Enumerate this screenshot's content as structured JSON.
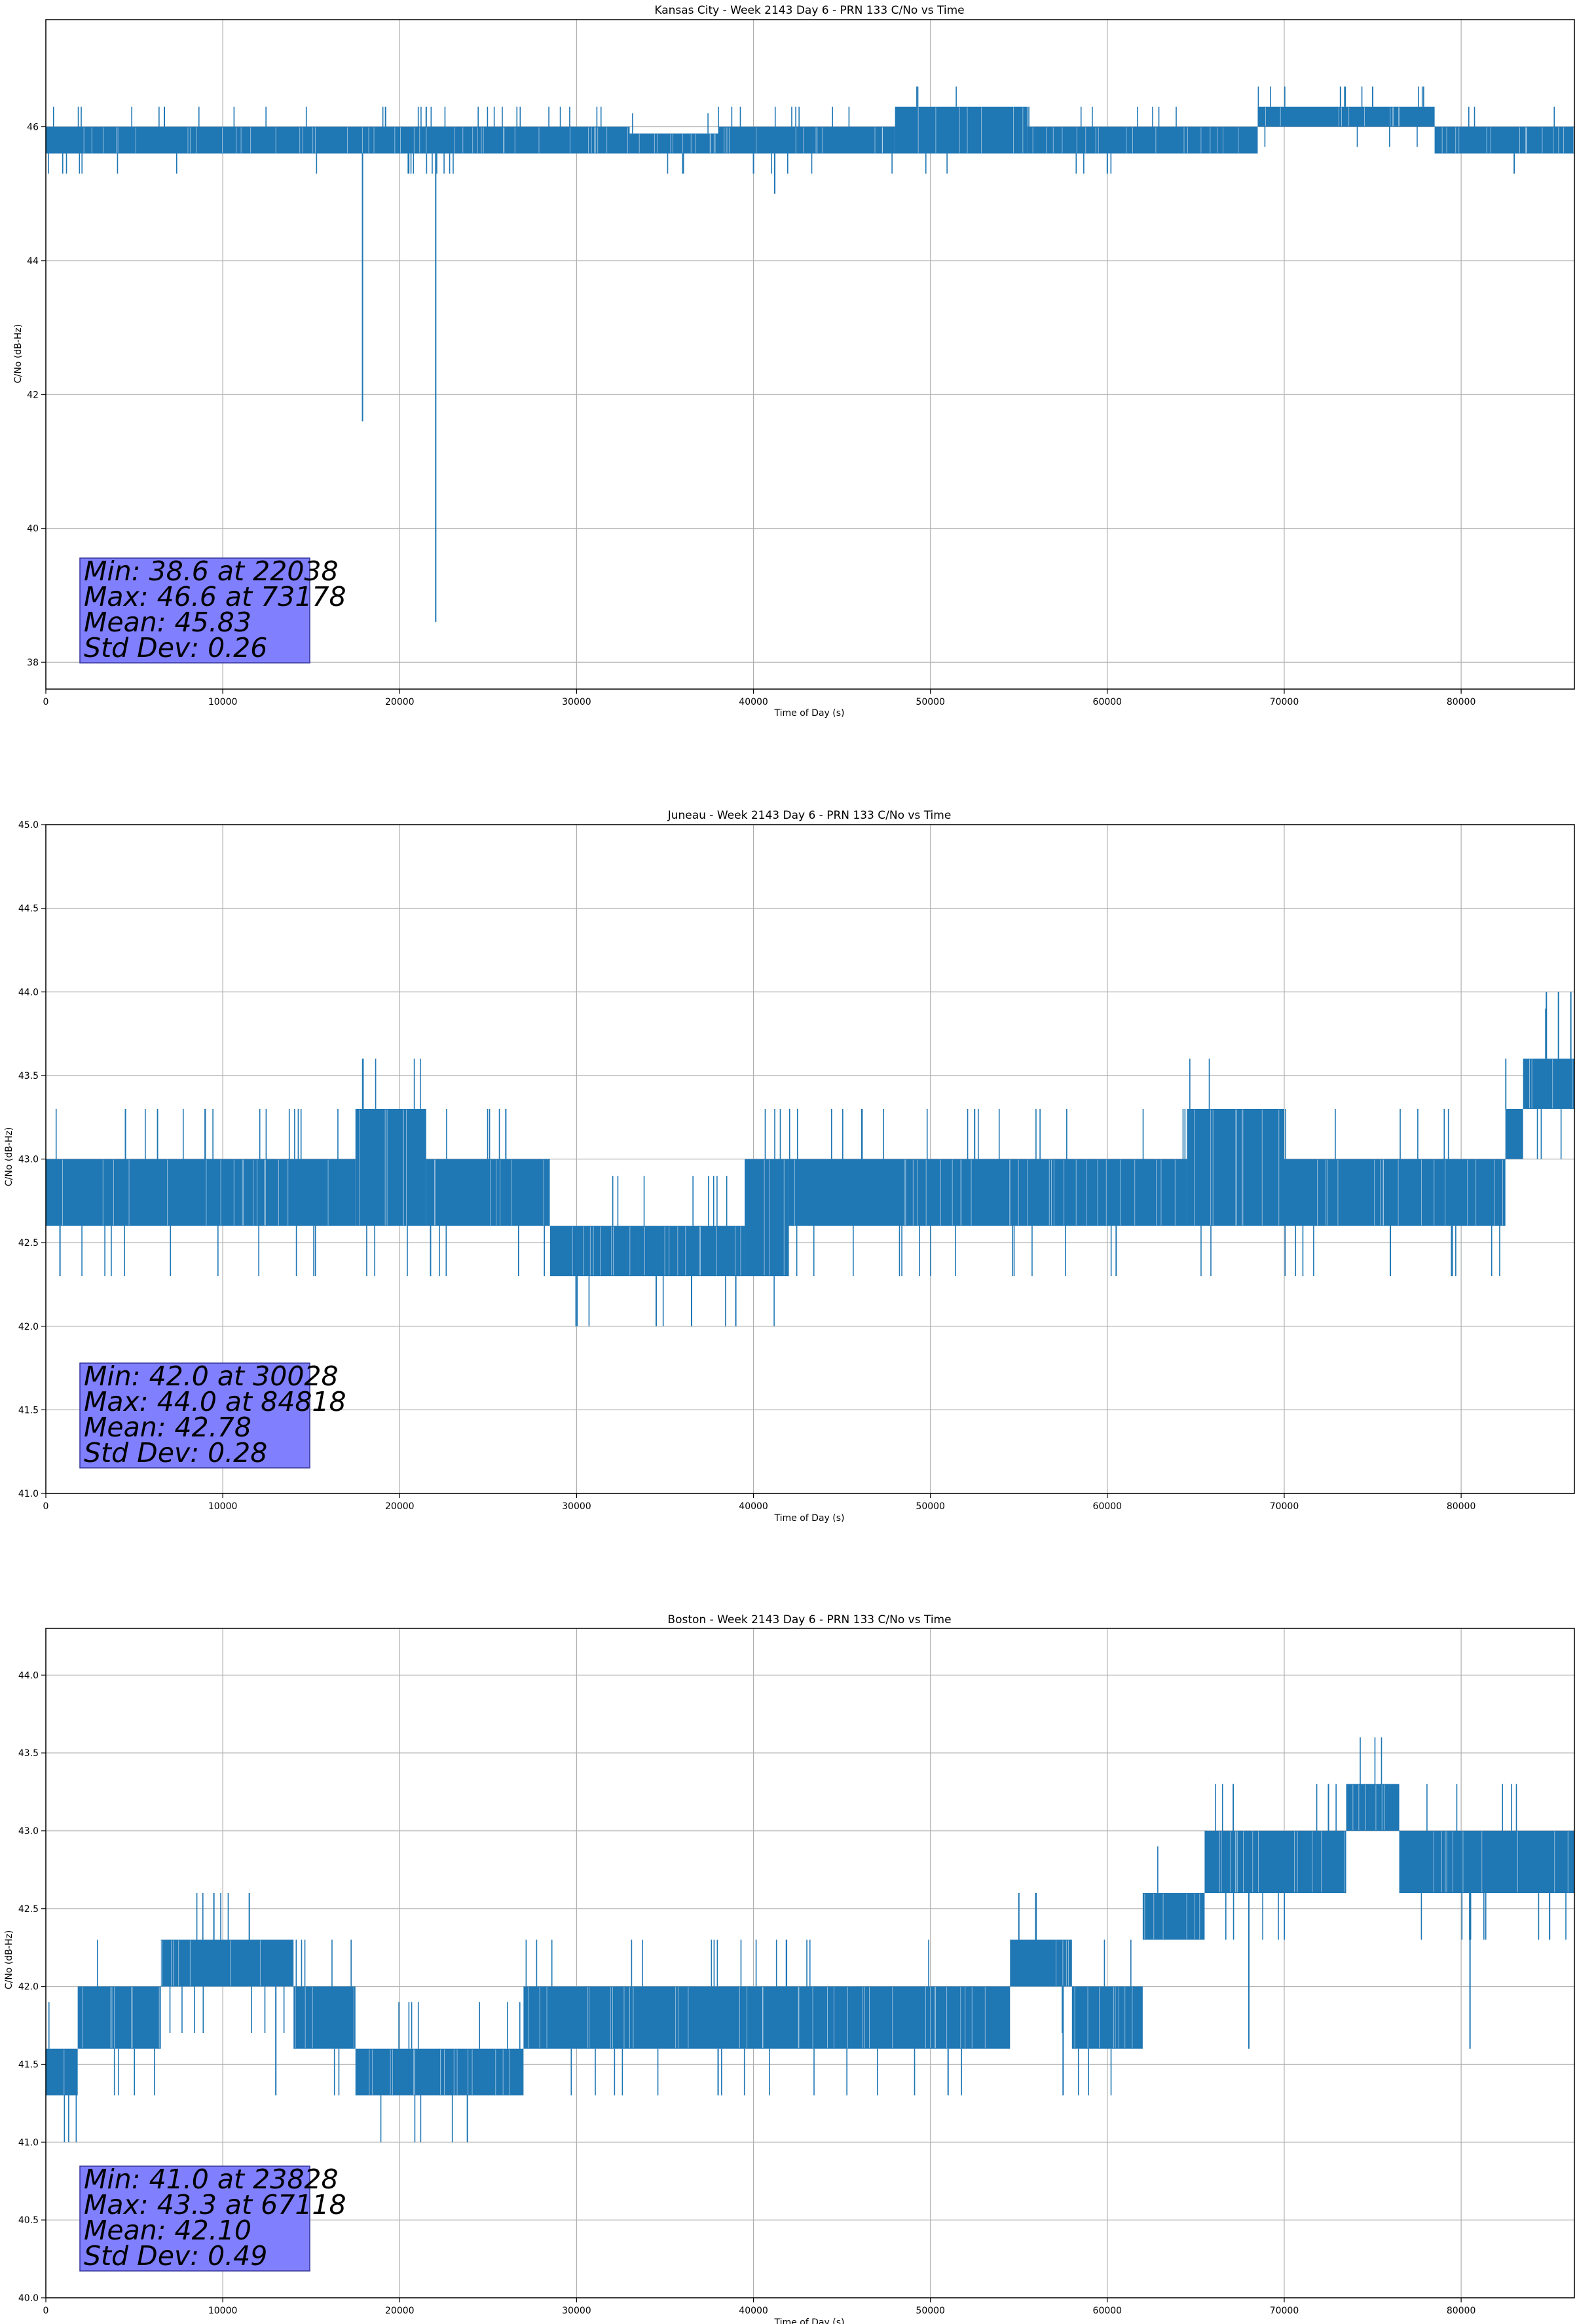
{
  "chart_data": [
    {
      "type": "line",
      "title": "Kansas City - Week 2143 Day 6 - PRN 133 C/No vs Time",
      "xlabel": "Time of Day (s)",
      "ylabel": "C/No (dB-Hz)",
      "xlim": [
        0,
        86400
      ],
      "ylim": [
        37.6,
        47.6
      ],
      "xticks": [
        0,
        10000,
        20000,
        30000,
        40000,
        50000,
        60000,
        70000,
        80000
      ],
      "yticks": [
        38,
        40,
        42,
        44,
        46
      ],
      "ytick_labels": [
        "38",
        "40",
        "42",
        "44",
        "46"
      ],
      "grid": true,
      "color": "#1f77b4",
      "series": [
        {
          "name": "PRN 133 C/No",
          "levels": [
            45.3,
            45.6,
            45.9,
            46.0,
            46.3,
            46.6
          ],
          "bands": [
            {
              "x": [
                0,
                33000
              ],
              "low": 45.6,
              "high": 46.0
            },
            {
              "x": [
                33000,
                38000
              ],
              "low": 45.6,
              "high": 45.9
            },
            {
              "x": [
                38000,
                48000
              ],
              "low": 45.6,
              "high": 46.0
            },
            {
              "x": [
                48000,
                55500
              ],
              "low": 45.6,
              "high": 46.3
            },
            {
              "x": [
                55500,
                68500
              ],
              "low": 45.6,
              "high": 46.0
            },
            {
              "x": [
                68500,
                78500
              ],
              "low": 46.0,
              "high": 46.3
            },
            {
              "x": [
                78500,
                86400
              ],
              "low": 45.6,
              "high": 46.0
            }
          ],
          "spikes": [
            {
              "x": 17900,
              "y": 41.6
            },
            {
              "x": 22038,
              "y": 38.6
            },
            {
              "x": 6700,
              "y": 46.3
            },
            {
              "x": 19200,
              "y": 46.3
            },
            {
              "x": 21500,
              "y": 46.3
            },
            {
              "x": 73178,
              "y": 46.6
            },
            {
              "x": 75000,
              "y": 46.6
            },
            {
              "x": 36000,
              "y": 45.3
            },
            {
              "x": 40000,
              "y": 45.3
            },
            {
              "x": 41200,
              "y": 45.0
            },
            {
              "x": 60000,
              "y": 45.3
            },
            {
              "x": 83000,
              "y": 45.3
            }
          ]
        }
      ],
      "stats": {
        "min": "Min: 38.6 at 22038",
        "max": "Max: 46.6 at 73178",
        "mean": "Mean: 45.83",
        "std": "Std Dev: 0.26"
      }
    },
    {
      "type": "line",
      "title": "Juneau - Week 2143 Day 6 - PRN 133 C/No vs Time",
      "xlabel": "Time of Day (s)",
      "ylabel": "C/No (dB-Hz)",
      "xlim": [
        0,
        86400
      ],
      "ylim": [
        41.0,
        45.0
      ],
      "xticks": [
        0,
        10000,
        20000,
        30000,
        40000,
        50000,
        60000,
        70000,
        80000
      ],
      "yticks": [
        41.0,
        41.5,
        42.0,
        42.5,
        43.0,
        43.5,
        44.0,
        44.5,
        45.0
      ],
      "ytick_labels": [
        "41.0",
        "41.5",
        "42.0",
        "42.5",
        "43.0",
        "43.5",
        "44.0",
        "44.5",
        "45.0"
      ],
      "grid": true,
      "color": "#1f77b4",
      "series": [
        {
          "name": "PRN 133 C/No",
          "bands": [
            {
              "x": [
                0,
                17500
              ],
              "low": 42.6,
              "high": 43.0
            },
            {
              "x": [
                17500,
                21500
              ],
              "low": 42.6,
              "high": 43.3
            },
            {
              "x": [
                21500,
                28500
              ],
              "low": 42.6,
              "high": 43.0
            },
            {
              "x": [
                28500,
                33500
              ],
              "low": 42.3,
              "high": 42.6
            },
            {
              "x": [
                33500,
                39500
              ],
              "low": 42.3,
              "high": 42.6
            },
            {
              "x": [
                39500,
                42000
              ],
              "low": 42.3,
              "high": 43.0
            },
            {
              "x": [
                42000,
                64500
              ],
              "low": 42.6,
              "high": 43.0
            },
            {
              "x": [
                64500,
                70000
              ],
              "low": 42.6,
              "high": 43.3
            },
            {
              "x": [
                70000,
                82500
              ],
              "low": 42.6,
              "high": 43.0
            },
            {
              "x": [
                82500,
                83500
              ],
              "low": 43.0,
              "high": 43.3
            },
            {
              "x": [
                83500,
                86400
              ],
              "low": 43.3,
              "high": 43.6
            }
          ],
          "spikes": [
            {
              "x": 800,
              "y": 42.3
            },
            {
              "x": 30028,
              "y": 42.0
            },
            {
              "x": 34500,
              "y": 42.0
            },
            {
              "x": 36500,
              "y": 42.0
            },
            {
              "x": 39000,
              "y": 42.0
            },
            {
              "x": 84818,
              "y": 44.0
            },
            {
              "x": 85500,
              "y": 44.0
            },
            {
              "x": 86200,
              "y": 44.0
            },
            {
              "x": 4500,
              "y": 43.3
            },
            {
              "x": 9000,
              "y": 43.3
            },
            {
              "x": 26000,
              "y": 43.3
            },
            {
              "x": 52500,
              "y": 43.3
            },
            {
              "x": 60500,
              "y": 42.3
            },
            {
              "x": 76000,
              "y": 42.3
            }
          ]
        }
      ],
      "stats": {
        "min": "Min: 42.0 at 30028",
        "max": "Max: 44.0 at 84818",
        "mean": "Mean: 42.78",
        "std": "Std Dev: 0.28"
      }
    },
    {
      "type": "line",
      "title": "Boston - Week 2143 Day 6 - PRN 133 C/No vs Time",
      "xlabel": "Time of Day (s)",
      "ylabel": "C/No (dB-Hz)",
      "xlim": [
        0,
        86400
      ],
      "ylim": [
        40.0,
        44.3
      ],
      "xticks": [
        0,
        10000,
        20000,
        30000,
        40000,
        50000,
        60000,
        70000,
        80000
      ],
      "yticks": [
        40.0,
        40.5,
        41.0,
        41.5,
        42.0,
        42.5,
        43.0,
        43.5,
        44.0
      ],
      "ytick_labels": [
        "40.0",
        "40.5",
        "41.0",
        "41.5",
        "42.0",
        "42.5",
        "43.0",
        "43.5",
        "44.0"
      ],
      "grid": true,
      "color": "#1f77b4",
      "series": [
        {
          "name": "PRN 133 C/No",
          "bands": [
            {
              "x": [
                0,
                1800
              ],
              "low": 41.3,
              "high": 41.6
            },
            {
              "x": [
                1800,
                6500
              ],
              "low": 41.6,
              "high": 42.0
            },
            {
              "x": [
                6500,
                14000
              ],
              "low": 42.0,
              "high": 42.3
            },
            {
              "x": [
                14000,
                17500
              ],
              "low": 41.6,
              "high": 42.0
            },
            {
              "x": [
                17500,
                27000
              ],
              "low": 41.3,
              "high": 41.6
            },
            {
              "x": [
                27000,
                54500
              ],
              "low": 41.6,
              "high": 42.0
            },
            {
              "x": [
                54500,
                58000
              ],
              "low": 42.0,
              "high": 42.3
            },
            {
              "x": [
                58000,
                62000
              ],
              "low": 41.6,
              "high": 42.0
            },
            {
              "x": [
                62000,
                65500
              ],
              "low": 42.3,
              "high": 42.6
            },
            {
              "x": [
                65500,
                73500
              ],
              "low": 42.6,
              "high": 43.0
            },
            {
              "x": [
                73500,
                76500
              ],
              "low": 43.0,
              "high": 43.3
            },
            {
              "x": [
                76500,
                86400
              ],
              "low": 42.6,
              "high": 43.0
            }
          ],
          "spikes": [
            {
              "x": 23828,
              "y": 41.0
            },
            {
              "x": 67118,
              "y": 43.3
            },
            {
              "x": 72500,
              "y": 43.3
            },
            {
              "x": 9500,
              "y": 42.6
            },
            {
              "x": 11500,
              "y": 42.6
            },
            {
              "x": 55000,
              "y": 42.6
            },
            {
              "x": 51000,
              "y": 41.3
            },
            {
              "x": 68000,
              "y": 41.6
            },
            {
              "x": 80500,
              "y": 41.6
            },
            {
              "x": 85000,
              "y": 42.3
            },
            {
              "x": 13000,
              "y": 41.3
            },
            {
              "x": 38000,
              "y": 41.3
            },
            {
              "x": 57500,
              "y": 41.3
            }
          ]
        }
      ],
      "stats": {
        "min": "Min: 41.0 at 23828",
        "max": "Max: 43.3 at 67118",
        "mean": "Mean: 42.10",
        "std": "Std Dev: 0.49"
      }
    }
  ]
}
